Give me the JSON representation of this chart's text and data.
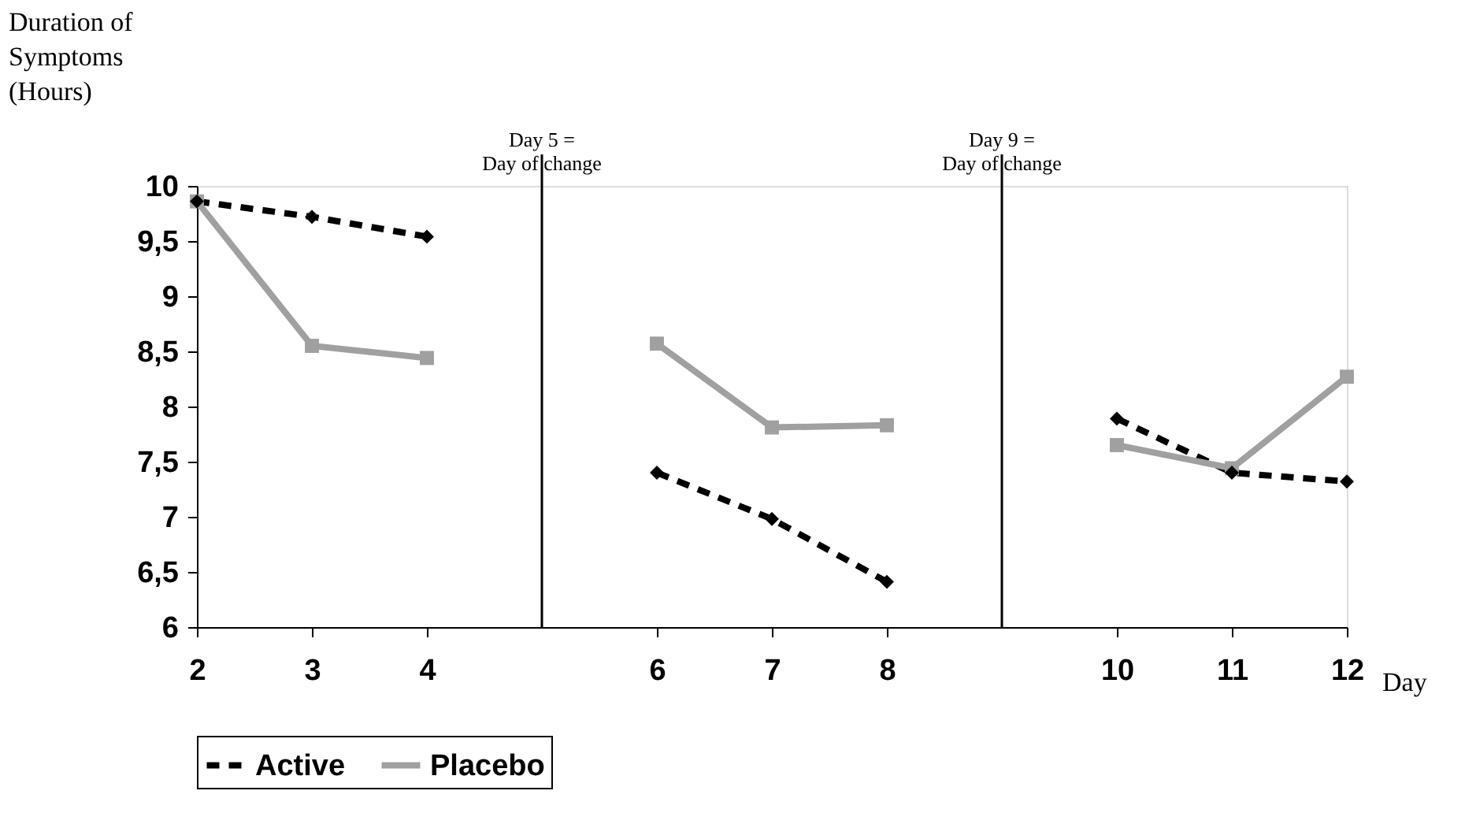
{
  "chart_data": {
    "type": "line",
    "ylabel": "Duration of\nSymptoms\n(Hours)",
    "xlabel": "Day",
    "x": [
      2,
      3,
      4,
      5,
      6,
      7,
      8,
      9,
      10,
      11,
      12
    ],
    "series": [
      {
        "name": "Active",
        "color": "#000000",
        "line_style": "dashed",
        "marker": "diamond",
        "values": [
          9.86,
          9.72,
          9.54,
          null,
          7.4,
          6.98,
          6.41,
          null,
          7.89,
          7.4,
          7.32
        ]
      },
      {
        "name": "Placebo",
        "color": "#a0a0a0",
        "line_style": "solid",
        "marker": "square",
        "values": [
          9.86,
          8.55,
          8.44,
          null,
          8.57,
          7.81,
          7.83,
          null,
          7.65,
          7.44,
          8.27
        ]
      }
    ],
    "xlim": [
      2,
      12
    ],
    "xticks": [
      2,
      3,
      4,
      6,
      7,
      8,
      10,
      11,
      12
    ],
    "ylim": [
      6,
      10
    ],
    "yticks": [
      6,
      {
        "value": 6.5,
        "label": "6,5"
      },
      7,
      {
        "value": 7.5,
        "label": "7,5"
      },
      8,
      {
        "value": 8.5,
        "label": "8,5"
      },
      9,
      {
        "value": 9.5,
        "label": "9,5"
      },
      10
    ],
    "ref_lines": [
      {
        "axis": "x",
        "value": 5,
        "label": "Day 5 =\nDay of change",
        "color": "#000000"
      },
      {
        "axis": "x",
        "value": 9,
        "label": "Day 9 =\nDay of change",
        "color": "#000000"
      }
    ],
    "grid": false,
    "legend": "bottom"
  }
}
